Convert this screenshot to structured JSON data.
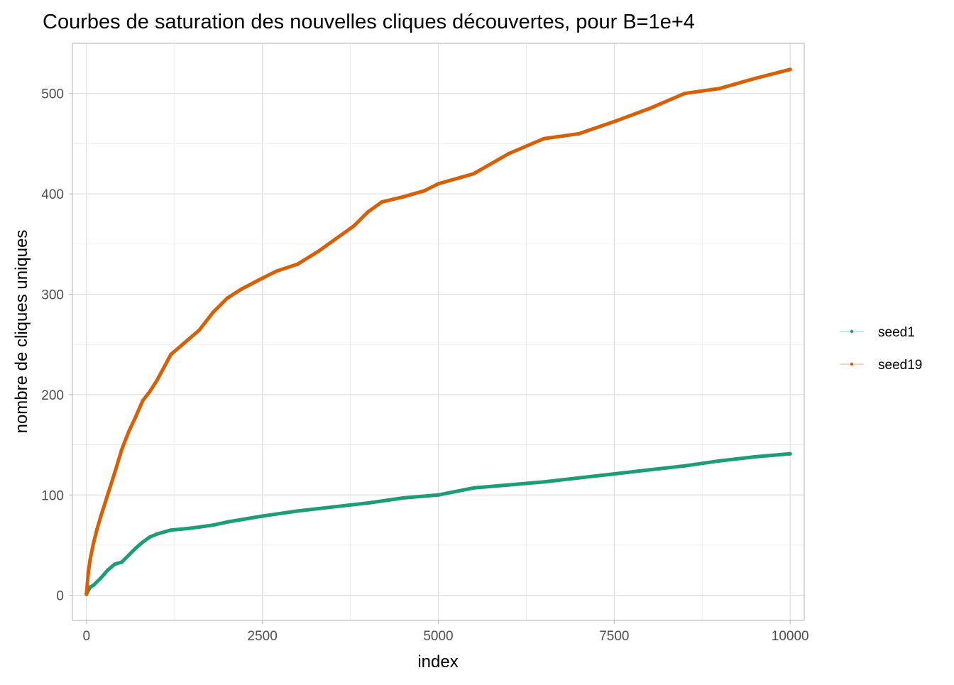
{
  "chart_data": {
    "type": "line",
    "title": "Courbes de saturation des nouvelles cliques découvertes, pour B=1e+4",
    "xlabel": "index",
    "ylabel": "nombre de cliques uniques",
    "xlim": [
      -200,
      10200
    ],
    "ylim": [
      -25,
      550
    ],
    "x_ticks": [
      0,
      2500,
      5000,
      7500,
      10000
    ],
    "x_tick_labels": [
      "0",
      "2500",
      "5000",
      "7500",
      "10000"
    ],
    "y_ticks": [
      0,
      100,
      200,
      300,
      400,
      500
    ],
    "y_tick_labels": [
      "0",
      "100",
      "200",
      "300",
      "400",
      "500"
    ],
    "grid": true,
    "legend_position": "right",
    "series": [
      {
        "name": "seed1",
        "color": "#1B9E77",
        "x": [
          0,
          50,
          100,
          200,
          300,
          400,
          500,
          600,
          700,
          800,
          900,
          1000,
          1200,
          1500,
          1800,
          2000,
          2500,
          3000,
          3500,
          4000,
          4500,
          5000,
          5500,
          6000,
          6500,
          7000,
          7500,
          8000,
          8500,
          9000,
          9500,
          10000
        ],
        "y": [
          1,
          8,
          10,
          17,
          25,
          31,
          33,
          40,
          47,
          53,
          58,
          61,
          65,
          67,
          70,
          73,
          79,
          84,
          88,
          92,
          97,
          100,
          107,
          110,
          113,
          117,
          121,
          125,
          129,
          134,
          138,
          141
        ]
      },
      {
        "name": "seed19",
        "color": "#D95F02",
        "x": [
          0,
          25,
          50,
          100,
          150,
          200,
          300,
          400,
          500,
          600,
          700,
          800,
          900,
          1000,
          1200,
          1400,
          1600,
          1800,
          2000,
          2200,
          2500,
          2700,
          3000,
          3300,
          3500,
          3800,
          4000,
          4200,
          4500,
          4800,
          5000,
          5500,
          6000,
          6500,
          7000,
          7500,
          8000,
          8500,
          9000,
          9500,
          10000
        ],
        "y": [
          1,
          22,
          35,
          52,
          66,
          78,
          100,
          122,
          145,
          163,
          178,
          194,
          203,
          214,
          240,
          252,
          264,
          282,
          296,
          305,
          316,
          323,
          330,
          343,
          353,
          368,
          382,
          392,
          397,
          403,
          410,
          420,
          440,
          455,
          460,
          472,
          485,
          500,
          505,
          515,
          524
        ]
      }
    ]
  }
}
